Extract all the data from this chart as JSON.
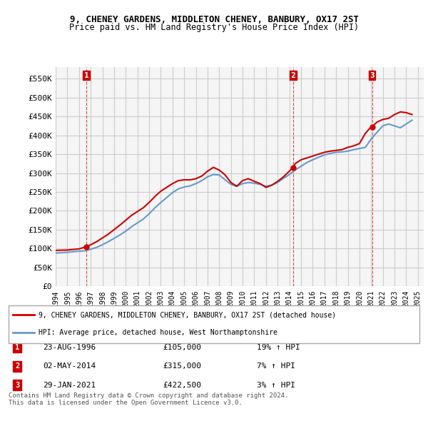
{
  "title1": "9, CHENEY GARDENS, MIDDLETON CHENEY, BANBURY, OX17 2ST",
  "title2": "Price paid vs. HM Land Registry's House Price Index (HPI)",
  "ylabel_ticks": [
    "£0",
    "£50K",
    "£100K",
    "£150K",
    "£200K",
    "£250K",
    "£300K",
    "£350K",
    "£400K",
    "£450K",
    "£500K",
    "£550K"
  ],
  "ylabel_values": [
    0,
    50000,
    100000,
    150000,
    200000,
    250000,
    300000,
    350000,
    400000,
    450000,
    500000,
    550000
  ],
  "xlim": [
    1994,
    2025.5
  ],
  "ylim": [
    0,
    580000
  ],
  "background_color": "#ffffff",
  "grid_color": "#cccccc",
  "plot_bg_color": "#f0f0f0",
  "red_line_color": "#cc0000",
  "blue_line_color": "#6699cc",
  "sale_marker_color": "#cc0000",
  "dashed_line_color": "#cc0000",
  "legend_label_red": "9, CHENEY GARDENS, MIDDLETON CHENEY, BANBURY, OX17 2ST (detached house)",
  "legend_label_blue": "HPI: Average price, detached house, West Northamptonshire",
  "sales": [
    {
      "num": 1,
      "date": "23-AUG-1996",
      "x": 1996.64,
      "price": 105000,
      "pct": "19%",
      "dir": "↑"
    },
    {
      "num": 2,
      "date": "02-MAY-2014",
      "x": 2014.33,
      "price": 315000,
      "pct": "7%",
      "dir": "↑"
    },
    {
      "num": 3,
      "date": "29-JAN-2021",
      "x": 2021.08,
      "price": 422500,
      "pct": "3%",
      "dir": "↑"
    }
  ],
  "footer": "Contains HM Land Registry data © Crown copyright and database right 2024.\nThis data is licensed under the Open Government Licence v3.0.",
  "hpi_years": [
    1994,
    1994.5,
    1995,
    1995.5,
    1996,
    1996.5,
    1997,
    1997.5,
    1998,
    1998.5,
    1999,
    1999.5,
    2000,
    2000.5,
    2001,
    2001.5,
    2002,
    2002.5,
    2003,
    2003.5,
    2004,
    2004.5,
    2005,
    2005.5,
    2006,
    2006.5,
    2007,
    2007.5,
    2008,
    2008.5,
    2009,
    2009.5,
    2010,
    2010.5,
    2011,
    2011.5,
    2012,
    2012.5,
    2013,
    2013.5,
    2014,
    2014.5,
    2015,
    2015.5,
    2016,
    2016.5,
    2017,
    2017.5,
    2018,
    2018.5,
    2019,
    2019.5,
    2020,
    2020.5,
    2021,
    2021.5,
    2022,
    2022.5,
    2023,
    2023.5,
    2024,
    2024.5
  ],
  "hpi_values": [
    88000,
    89000,
    90000,
    91500,
    93000,
    94000,
    98000,
    103000,
    110000,
    118000,
    127000,
    136000,
    146000,
    158000,
    168000,
    178000,
    192000,
    208000,
    222000,
    235000,
    248000,
    258000,
    263000,
    266000,
    272000,
    280000,
    290000,
    296000,
    295000,
    282000,
    270000,
    265000,
    272000,
    275000,
    273000,
    270000,
    265000,
    268000,
    275000,
    286000,
    296000,
    308000,
    318000,
    328000,
    335000,
    342000,
    348000,
    352000,
    355000,
    356000,
    358000,
    362000,
    365000,
    368000,
    390000,
    408000,
    425000,
    430000,
    425000,
    420000,
    430000,
    440000
  ],
  "red_years": [
    1994,
    1994.5,
    1995,
    1995.5,
    1996,
    1996.64,
    1997,
    1997.5,
    1998,
    1998.5,
    1999,
    1999.5,
    2000,
    2000.5,
    2001,
    2001.5,
    2002,
    2002.5,
    2003,
    2003.5,
    2004,
    2004.5,
    2005,
    2005.5,
    2006,
    2006.5,
    2007,
    2007.5,
    2008,
    2008.5,
    2009,
    2009.5,
    2010,
    2010.5,
    2011,
    2011.5,
    2012,
    2012.5,
    2013,
    2013.5,
    2014,
    2014.33,
    2014.5,
    2015,
    2015.5,
    2016,
    2016.5,
    2017,
    2017.5,
    2018,
    2018.5,
    2019,
    2019.5,
    2020,
    2020.5,
    2021,
    2021.08,
    2021.5,
    2022,
    2022.5,
    2023,
    2023.5,
    2024,
    2024.5
  ],
  "red_values": [
    95000,
    95500,
    96000,
    97500,
    99000,
    105000,
    110000,
    118000,
    128000,
    138000,
    150000,
    162000,
    175000,
    188000,
    198000,
    208000,
    222000,
    238000,
    252000,
    262000,
    272000,
    280000,
    282000,
    282000,
    285000,
    292000,
    305000,
    315000,
    308000,
    295000,
    275000,
    265000,
    280000,
    285000,
    278000,
    272000,
    262000,
    268000,
    278000,
    290000,
    305000,
    315000,
    325000,
    335000,
    340000,
    345000,
    350000,
    355000,
    358000,
    360000,
    362000,
    368000,
    372000,
    378000,
    405000,
    422500,
    422500,
    435000,
    442000,
    445000,
    455000,
    462000,
    460000,
    455000
  ],
  "xtick_years": [
    1994,
    1995,
    1996,
    1997,
    1998,
    1999,
    2000,
    2001,
    2002,
    2003,
    2004,
    2005,
    2006,
    2007,
    2008,
    2009,
    2010,
    2011,
    2012,
    2013,
    2014,
    2015,
    2016,
    2017,
    2018,
    2019,
    2020,
    2021,
    2022,
    2023,
    2024,
    2025
  ]
}
